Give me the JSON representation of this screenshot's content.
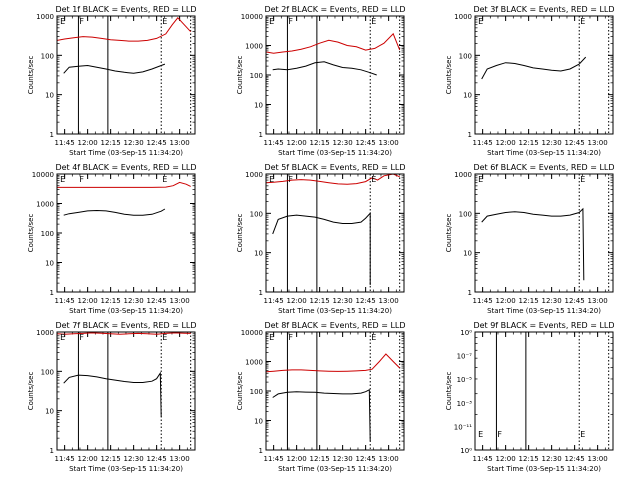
{
  "chart_data": [
    {
      "type": "line",
      "title": "Det 1f BLACK = Events, RED = LLD",
      "xlabel": "Start Time (03-Sep-15 11:34:20)",
      "ylabel": "Counts/sec",
      "xlim": [
        11.667,
        13.167
      ],
      "ylim": [
        1,
        1000
      ],
      "y_scale": "log",
      "x_tick_labels": [
        "11:45",
        "12:00",
        "12:15",
        "12:30",
        "12:45",
        "13:00"
      ],
      "y_tick_labels": [
        "1",
        "10",
        "100",
        "1000"
      ],
      "solid_vlines": [
        11.9,
        12.22
      ],
      "dotted_vlines": [
        12.8,
        13.12
      ],
      "markers": [
        {
          "label": "E",
          "x": 11.69,
          "y": 1000
        },
        {
          "label": "F",
          "x": 11.9,
          "y": 1000
        },
        {
          "label": "E",
          "x": 12.8,
          "y": 1000
        }
      ],
      "series": [
        {
          "name": "BLACK = Events",
          "color": "#000000",
          "x": [
            11.74,
            11.8,
            11.9,
            12.0,
            12.1,
            12.2,
            12.3,
            12.4,
            12.5,
            12.6,
            12.7,
            12.8,
            12.84
          ],
          "y": [
            35,
            50,
            53,
            55,
            50,
            45,
            40,
            37,
            35,
            38,
            45,
            55,
            60
          ]
        },
        {
          "name": "RED = LLD",
          "color": "#cc0000",
          "x": [
            11.67,
            11.75,
            11.85,
            11.95,
            12.05,
            12.15,
            12.25,
            12.35,
            12.45,
            12.55,
            12.65,
            12.75,
            12.85,
            12.92,
            12.98,
            13.05,
            13.12
          ],
          "y": [
            240,
            260,
            280,
            300,
            290,
            270,
            250,
            240,
            230,
            230,
            240,
            270,
            350,
            600,
            900,
            600,
            400
          ]
        }
      ]
    },
    {
      "type": "line",
      "title": "Det 2f BLACK = Events, RED = LLD",
      "xlabel": "Start Time (03-Sep-15 11:34:20)",
      "ylabel": "Counts/sec",
      "xlim": [
        11.667,
        13.167
      ],
      "ylim": [
        1,
        10000
      ],
      "y_scale": "log",
      "x_tick_labels": [
        "11:45",
        "12:00",
        "12:15",
        "12:30",
        "12:45",
        "13:00"
      ],
      "y_tick_labels": [
        "1",
        "10",
        "100",
        "1000",
        "10000"
      ],
      "solid_vlines": [
        11.9,
        12.22
      ],
      "dotted_vlines": [
        12.8,
        13.12
      ],
      "markers": [
        {
          "label": "E",
          "x": 11.69,
          "y": 10000
        },
        {
          "label": "F",
          "x": 11.9,
          "y": 10000
        },
        {
          "label": "E",
          "x": 12.8,
          "y": 10000
        }
      ],
      "series": [
        {
          "name": "BLACK = Events",
          "color": "#000000",
          "x": [
            11.74,
            11.8,
            11.9,
            12.0,
            12.1,
            12.2,
            12.3,
            12.4,
            12.5,
            12.6,
            12.7,
            12.8,
            12.87
          ],
          "y": [
            150,
            160,
            150,
            170,
            200,
            260,
            280,
            220,
            180,
            170,
            150,
            120,
            100
          ]
        },
        {
          "name": "RED = LLD",
          "color": "#cc0000",
          "x": [
            11.67,
            11.75,
            11.85,
            11.95,
            12.05,
            12.15,
            12.25,
            12.35,
            12.45,
            12.55,
            12.65,
            12.75,
            12.85,
            12.95,
            13.05,
            13.12
          ],
          "y": [
            600,
            550,
            600,
            650,
            750,
            900,
            1200,
            1500,
            1300,
            1000,
            900,
            700,
            800,
            1200,
            2500,
            700
          ]
        }
      ]
    },
    {
      "type": "line",
      "title": "Det 3f BLACK = Events, RED = LLD",
      "xlabel": "Start Time (03-Sep-15 11:34:20)",
      "ylabel": "Counts/sec",
      "xlim": [
        11.667,
        13.167
      ],
      "ylim": [
        1,
        1000
      ],
      "y_scale": "log",
      "x_tick_labels": [
        "11:45",
        "12:00",
        "12:15",
        "12:30",
        "12:45",
        "13:00"
      ],
      "y_tick_labels": [
        "1",
        "10",
        "100",
        "1000"
      ],
      "solid_vlines": [],
      "dotted_vlines": [
        12.8,
        13.12
      ],
      "markers": [
        {
          "label": "E",
          "x": 11.69,
          "y": 1000
        },
        {
          "label": "E",
          "x": 12.8,
          "y": 1000
        }
      ],
      "series": [
        {
          "name": "BLACK = Events",
          "color": "#000000",
          "x": [
            11.74,
            11.8,
            11.9,
            12.0,
            12.1,
            12.2,
            12.3,
            12.4,
            12.5,
            12.6,
            12.7,
            12.8,
            12.87
          ],
          "y": [
            25,
            45,
            55,
            65,
            62,
            55,
            48,
            45,
            42,
            40,
            45,
            60,
            90
          ]
        }
      ]
    },
    {
      "type": "line",
      "title": "Det 4f BLACK = Events, RED = LLD",
      "xlabel": "Start Time (03-Sep-15 11:34:20)",
      "ylabel": "Counts/sec",
      "xlim": [
        11.667,
        13.167
      ],
      "ylim": [
        1,
        10000
      ],
      "y_scale": "log",
      "x_tick_labels": [
        "11:45",
        "12:00",
        "12:15",
        "12:30",
        "12:45",
        "13:00"
      ],
      "y_tick_labels": [
        "1",
        "10",
        "100",
        "1000",
        "10000"
      ],
      "solid_vlines": [],
      "dotted_vlines": [],
      "markers": [
        {
          "label": "E",
          "x": 11.69,
          "y": 10000
        },
        {
          "label": "F",
          "x": 11.9,
          "y": 10000
        },
        {
          "label": "E",
          "x": 12.8,
          "y": 10000
        }
      ],
      "series": [
        {
          "name": "BLACK = Events",
          "color": "#000000",
          "x": [
            11.74,
            11.8,
            11.9,
            12.0,
            12.1,
            12.2,
            12.3,
            12.4,
            12.5,
            12.6,
            12.7,
            12.8,
            12.84
          ],
          "y": [
            400,
            450,
            500,
            560,
            580,
            560,
            500,
            430,
            400,
            400,
            430,
            550,
            650
          ]
        },
        {
          "name": "RED = LLD",
          "color": "#cc0000",
          "x": [
            11.67,
            11.8,
            11.95,
            12.1,
            12.25,
            12.4,
            12.55,
            12.7,
            12.85,
            12.93,
            13.0,
            13.07,
            13.12
          ],
          "y": [
            3500,
            3500,
            3500,
            3500,
            3500,
            3500,
            3500,
            3500,
            3600,
            4000,
            5200,
            4500,
            3800
          ]
        }
      ]
    },
    {
      "type": "line",
      "title": "Det 5f BLACK = Events, RED = LLD",
      "xlabel": "Start Time (03-Sep-15 11:34:20)",
      "ylabel": "Counts/sec",
      "xlim": [
        11.667,
        13.167
      ],
      "ylim": [
        1,
        1000
      ],
      "y_scale": "log",
      "x_tick_labels": [
        "11:45",
        "12:00",
        "12:15",
        "12:30",
        "12:45",
        "13:00"
      ],
      "y_tick_labels": [
        "1",
        "10",
        "100",
        "1000"
      ],
      "solid_vlines": [
        11.9,
        12.22
      ],
      "dotted_vlines": [
        12.8,
        13.12
      ],
      "markers": [
        {
          "label": "E",
          "x": 11.69,
          "y": 1000
        },
        {
          "label": "F",
          "x": 11.9,
          "y": 1000
        },
        {
          "label": "E",
          "x": 12.8,
          "y": 1000
        }
      ],
      "series": [
        {
          "name": "BLACK = Events",
          "color": "#000000",
          "x": [
            11.74,
            11.8,
            11.9,
            12.0,
            12.1,
            12.2,
            12.3,
            12.4,
            12.5,
            12.6,
            12.7,
            12.75,
            12.8,
            12.8
          ],
          "y": [
            30,
            70,
            85,
            90,
            85,
            80,
            70,
            60,
            55,
            55,
            60,
            75,
            100,
            1.5
          ]
        },
        {
          "name": "RED = LLD",
          "color": "#cc0000",
          "x": [
            11.67,
            11.75,
            11.85,
            11.95,
            12.05,
            12.15,
            12.25,
            12.35,
            12.45,
            12.55,
            12.65,
            12.75,
            12.82,
            12.88,
            12.95,
            13.05,
            13.12
          ],
          "y": [
            600,
            620,
            650,
            700,
            720,
            700,
            650,
            600,
            560,
            550,
            570,
            640,
            800,
            700,
            900,
            1000,
            850
          ]
        }
      ]
    },
    {
      "type": "line",
      "title": "Det 6f BLACK = Events, RED = LLD",
      "xlabel": "Start Time (03-Sep-15 11:34:20)",
      "ylabel": "Counts/sec",
      "xlim": [
        11.667,
        13.167
      ],
      "ylim": [
        1,
        1000
      ],
      "y_scale": "log",
      "x_tick_labels": [
        "11:45",
        "12:00",
        "12:15",
        "12:30",
        "12:45",
        "13:00"
      ],
      "y_tick_labels": [
        "1",
        "10",
        "100",
        "1000"
      ],
      "solid_vlines": [],
      "dotted_vlines": [
        12.8,
        13.12
      ],
      "markers": [
        {
          "label": "E",
          "x": 11.69,
          "y": 1000
        },
        {
          "label": "E",
          "x": 12.8,
          "y": 1000
        }
      ],
      "series": [
        {
          "name": "BLACK = Events",
          "color": "#000000",
          "x": [
            11.74,
            11.8,
            11.9,
            12.0,
            12.1,
            12.2,
            12.3,
            12.4,
            12.5,
            12.6,
            12.7,
            12.8,
            12.84,
            12.85
          ],
          "y": [
            60,
            85,
            95,
            105,
            110,
            105,
            95,
            90,
            85,
            85,
            90,
            105,
            130,
            2
          ]
        }
      ]
    },
    {
      "type": "line",
      "title": "Det 7f BLACK = Events, RED = LLD",
      "xlabel": "Start Time (03-Sep-15 11:34:20)",
      "ylabel": "Counts/sec",
      "xlim": [
        11.667,
        13.167
      ],
      "ylim": [
        1,
        1000
      ],
      "y_scale": "log",
      "x_tick_labels": [
        "11:45",
        "12:00",
        "12:15",
        "12:30",
        "12:45",
        "13:00"
      ],
      "y_tick_labels": [
        "1",
        "10",
        "100",
        "1000"
      ],
      "solid_vlines": [
        11.9,
        12.22
      ],
      "dotted_vlines": [
        12.8,
        13.12
      ],
      "markers": [
        {
          "label": "E",
          "x": 11.69,
          "y": 1000
        },
        {
          "label": "F",
          "x": 11.9,
          "y": 1000
        },
        {
          "label": "E",
          "x": 12.8,
          "y": 1000
        }
      ],
      "series": [
        {
          "name": "BLACK = Events",
          "color": "#000000",
          "x": [
            11.74,
            11.8,
            11.9,
            12.0,
            12.1,
            12.2,
            12.3,
            12.4,
            12.5,
            12.6,
            12.7,
            12.75,
            12.79,
            12.8
          ],
          "y": [
            50,
            70,
            80,
            78,
            72,
            65,
            60,
            55,
            52,
            52,
            56,
            65,
            90,
            7
          ]
        },
        {
          "name": "RED = LLD",
          "color": "#cc0000",
          "x": [
            11.67,
            11.75,
            11.85,
            11.95,
            12.05,
            12.15,
            12.25,
            12.35,
            12.45,
            12.55,
            12.65,
            12.75,
            12.85,
            12.95,
            13.05,
            13.12
          ],
          "y": [
            900,
            880,
            900,
            920,
            950,
            930,
            900,
            880,
            900,
            920,
            900,
            880,
            920,
            950,
            930,
            920
          ]
        }
      ]
    },
    {
      "type": "line",
      "title": "Det 8f BLACK = Events, RED = LLD",
      "xlabel": "Start Time (03-Sep-15 11:34:20)",
      "ylabel": "Counts/sec",
      "xlim": [
        11.667,
        13.167
      ],
      "ylim": [
        1,
        10000
      ],
      "y_scale": "log",
      "x_tick_labels": [
        "11:45",
        "12:00",
        "12:15",
        "12:30",
        "12:45",
        "13:00"
      ],
      "y_tick_labels": [
        "1",
        "10",
        "100",
        "1000",
        "10000"
      ],
      "solid_vlines": [
        11.9,
        12.22
      ],
      "dotted_vlines": [
        12.8,
        13.12
      ],
      "markers": [
        {
          "label": "E",
          "x": 11.69,
          "y": 10000
        },
        {
          "label": "F",
          "x": 11.9,
          "y": 10000
        },
        {
          "label": "E",
          "x": 12.8,
          "y": 10000
        }
      ],
      "series": [
        {
          "name": "BLACK = Events",
          "color": "#000000",
          "x": [
            11.74,
            11.8,
            11.9,
            12.0,
            12.1,
            12.2,
            12.3,
            12.4,
            12.5,
            12.6,
            12.7,
            12.75,
            12.79,
            12.8
          ],
          "y": [
            60,
            80,
            90,
            95,
            92,
            90,
            85,
            82,
            80,
            80,
            85,
            95,
            110,
            2
          ]
        },
        {
          "name": "RED = LLD",
          "color": "#cc0000",
          "x": [
            11.67,
            11.75,
            11.85,
            11.95,
            12.05,
            12.15,
            12.25,
            12.35,
            12.45,
            12.55,
            12.65,
            12.75,
            12.82,
            12.9,
            12.97,
            13.05,
            13.12
          ],
          "y": [
            450,
            470,
            500,
            520,
            520,
            500,
            480,
            470,
            460,
            470,
            480,
            500,
            550,
            1000,
            1800,
            1000,
            600
          ]
        }
      ]
    },
    {
      "type": "line",
      "title": "Det 9f BLACK = Events, RED = LLD",
      "xlabel": "Start Time (03-Sep-15 11:34:20)",
      "ylabel": "Counts/sec",
      "xlim": [
        11.667,
        13.167
      ],
      "ylim": [
        1,
        10
      ],
      "y_scale": "log",
      "x_tick_labels": [
        "11:45",
        "12:00",
        "12:15",
        "12:30",
        "12:45",
        "13:00"
      ],
      "y_tick_labels": [
        "10⁰",
        "10⁻¹¹",
        "10⁻³",
        "10⁻⁵",
        "10⁻⁷",
        "10⁰"
      ],
      "solid_vlines": [
        11.9,
        12.22
      ],
      "dotted_vlines": [
        12.8,
        13.12
      ],
      "markers": [
        {
          "label": "E",
          "x": 11.69,
          "y": 1.5
        },
        {
          "label": "F",
          "x": 11.9,
          "y": 1.5
        },
        {
          "label": "E",
          "x": 12.8,
          "y": 1.5
        }
      ],
      "series": []
    }
  ]
}
